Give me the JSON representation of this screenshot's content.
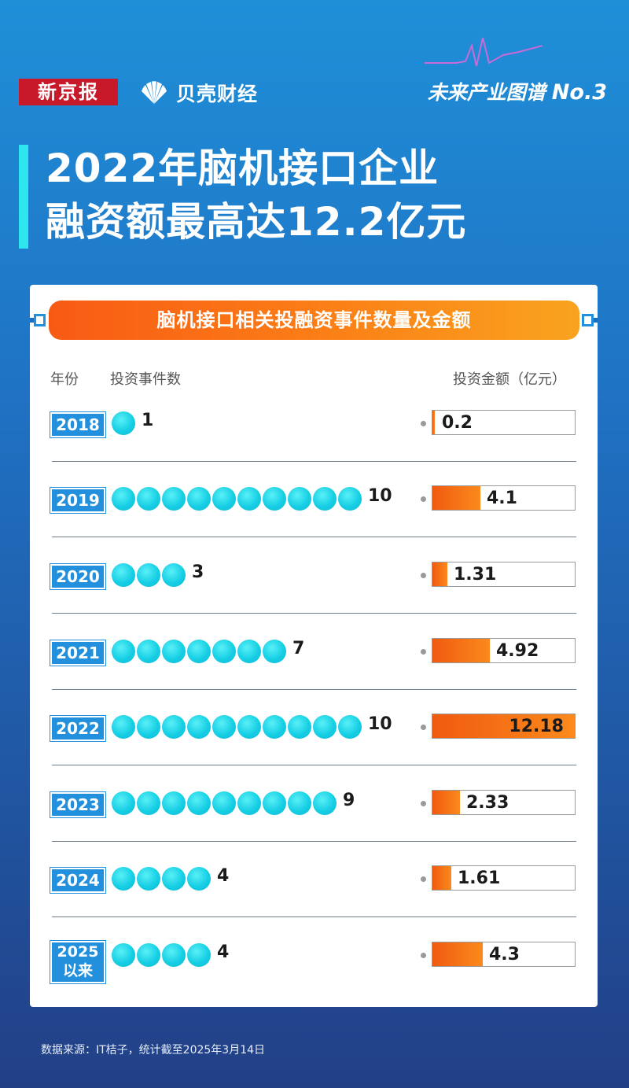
{
  "header": {
    "brand_newspaper": "新京报",
    "brand_beike": "贝壳财经",
    "series_name": "未来产业图谱",
    "series_no": "No.3"
  },
  "title": {
    "line1": "2022年脑机接口企业",
    "line2": "融资额最高达12.2亿元"
  },
  "card": {
    "banner": "脑机接口相关投融资事件数量及金额",
    "col_year": "年份",
    "col_count": "投资事件数",
    "col_amount": "投资金额（亿元）"
  },
  "colors": {
    "dot": "#16cfe4",
    "bar": "#f9711a",
    "year_box": "#2390dd",
    "title_accent": "#2ee6ef"
  },
  "chart_data": {
    "type": "bar",
    "title": "脑机接口相关投融资事件数量及金额",
    "categories": [
      "2018",
      "2019",
      "2020",
      "2021",
      "2022",
      "2023",
      "2024",
      "2025以来"
    ],
    "series": [
      {
        "name": "投资事件数",
        "values": [
          1,
          10,
          3,
          7,
          10,
          9,
          4,
          4
        ]
      },
      {
        "name": "投资金额（亿元）",
        "values": [
          0.2,
          4.1,
          1.31,
          4.92,
          12.18,
          2.33,
          1.61,
          4.3
        ]
      }
    ],
    "rows": [
      {
        "year": "2018",
        "count": "1",
        "amount": "0.2"
      },
      {
        "year": "2019",
        "count": "10",
        "amount": "4.1"
      },
      {
        "year": "2020",
        "count": "3",
        "amount": "1.31"
      },
      {
        "year": "2021",
        "count": "7",
        "amount": "4.92"
      },
      {
        "year": "2022",
        "count": "10",
        "amount": "12.18"
      },
      {
        "year": "2023",
        "count": "9",
        "amount": "2.33"
      },
      {
        "year": "2024",
        "count": "4",
        "amount": "1.61"
      },
      {
        "year": "2025",
        "year_line2": "以来",
        "count": "4",
        "amount": "4.3"
      }
    ],
    "amount_max": 12.2
  },
  "footer": {
    "source": "数据来源：IT桔子，统计截至2025年3月14日"
  }
}
